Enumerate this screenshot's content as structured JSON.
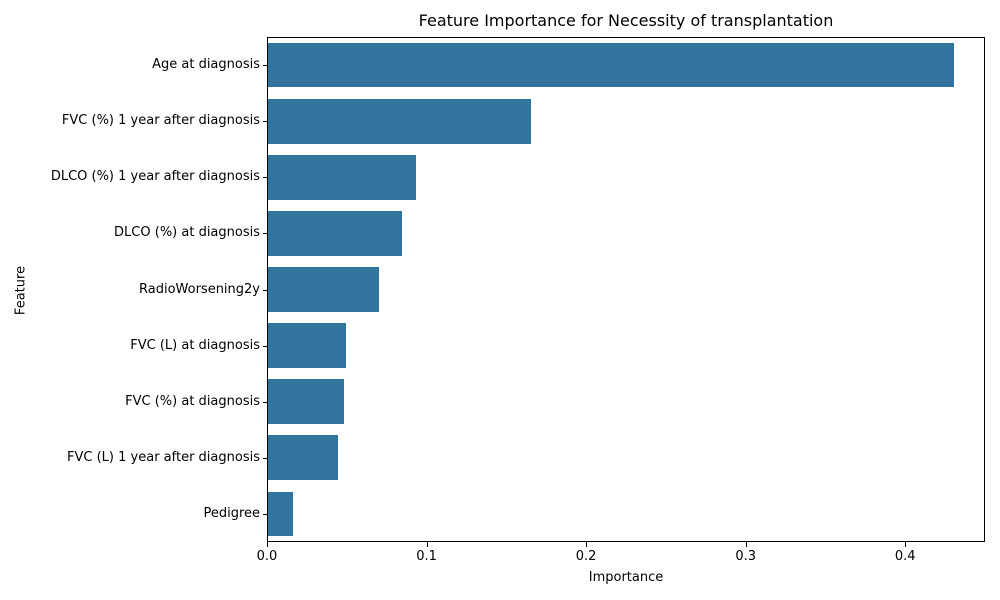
{
  "chart_data": {
    "type": "bar",
    "orientation": "horizontal",
    "title": "Feature Importance for Necessity of transplantation",
    "xlabel": "Importance",
    "ylabel": "Feature",
    "categories": [
      "Age at diagnosis",
      "FVC (%) 1 year after diagnosis",
      "DLCO (%) 1 year after diagnosis",
      "DLCO (%) at diagnosis",
      "RadioWorsening2y",
      "FVC (L) at diagnosis",
      "FVC (%) at diagnosis",
      "FVC (L) 1 year after diagnosis",
      "Pedigree"
    ],
    "values": [
      0.431,
      0.165,
      0.093,
      0.084,
      0.07,
      0.049,
      0.048,
      0.044,
      0.016
    ],
    "xlim": [
      0,
      0.45
    ],
    "x_ticks": [
      0.0,
      0.1,
      0.2,
      0.3,
      0.4
    ],
    "x_tick_labels": [
      "0.0",
      "0.1",
      "0.2",
      "0.3",
      "0.4"
    ],
    "bar_color": "#32749E",
    "grid": false,
    "legend": null
  }
}
